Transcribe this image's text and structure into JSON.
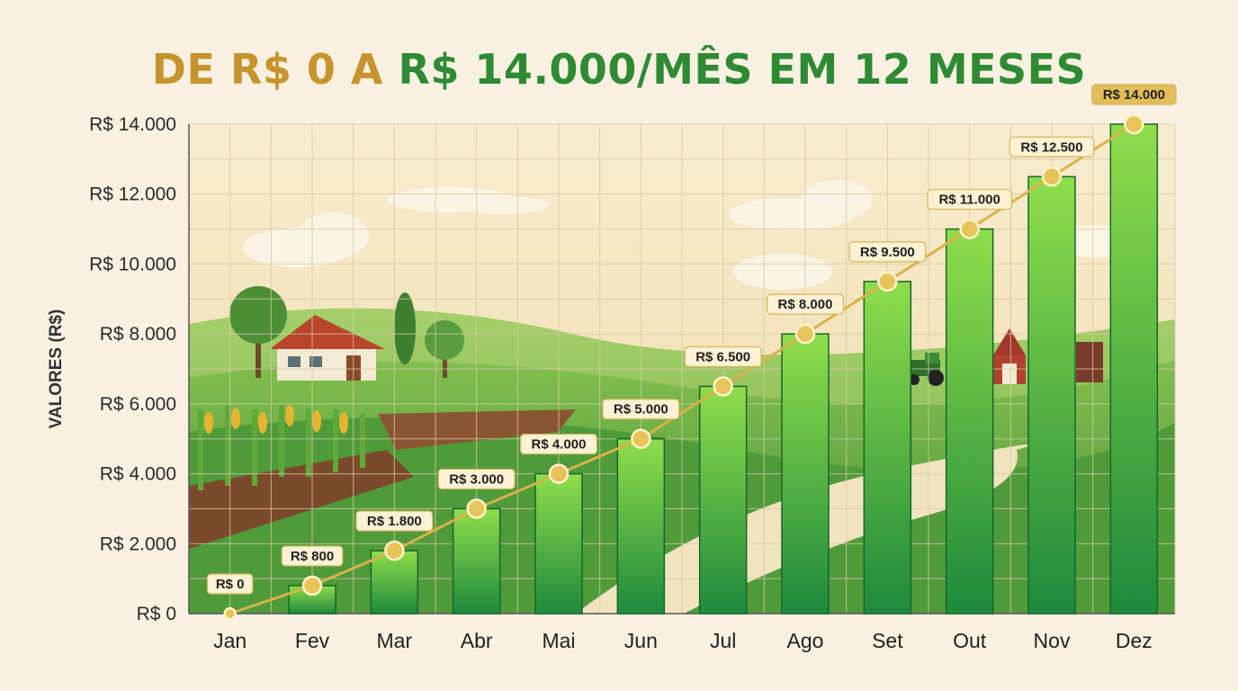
{
  "title": {
    "part1": "DE R$ 0 A ",
    "part2": "R$ 14.000/MÊS EM 12 MESES"
  },
  "colors": {
    "title_gold": "#c6932c",
    "title_green": "#2f8a34",
    "bar_top": "#8fdd4a",
    "bar_bottom": "#1f8a3c",
    "line_gold": "#d9b24a",
    "background": "#f8f1e1"
  },
  "chart_data": {
    "type": "bar",
    "categories": [
      "Jan",
      "Fev",
      "Mar",
      "Abr",
      "Mai",
      "Jun",
      "Jul",
      "Ago",
      "Set",
      "Out",
      "Nov",
      "Dez"
    ],
    "values": [
      0,
      800,
      1800,
      3000,
      4000,
      5000,
      6500,
      8000,
      9500,
      11000,
      12500,
      14000
    ],
    "data_labels": [
      "R$ 0",
      "R$ 800",
      "R$ 1.800",
      "R$ 3.000",
      "R$ 4.000",
      "R$ 5.000",
      "R$ 6.500",
      "R$ 8.000",
      "R$ 9.500",
      "R$ 11.000",
      "R$ 12.500",
      "R$ 14.000"
    ],
    "overlay": "line with markers through bar tops",
    "ylabel": "VALORES (R$)",
    "xlabel": "",
    "ylim": [
      0,
      14000
    ],
    "yticks": [
      0,
      2000,
      4000,
      6000,
      8000,
      10000,
      12000,
      14000
    ],
    "ytick_labels": [
      "R$ 0",
      "R$ 2.000",
      "R$ 4.000",
      "R$ 6.000",
      "R$ 8.000",
      "R$ 10.000",
      "R$ 12.000",
      "R$ 14.000"
    ],
    "grid": true,
    "legend": "none"
  }
}
